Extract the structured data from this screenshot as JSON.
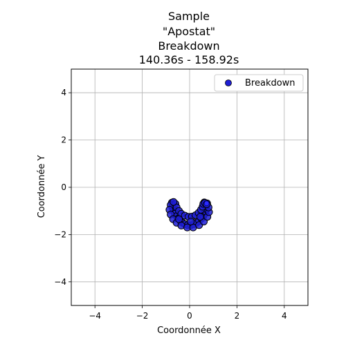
{
  "chart_data": {
    "type": "scatter",
    "title_lines": [
      "Sample",
      "\"Apostat\"",
      "Breakdown",
      "140.36s - 158.92s"
    ],
    "xlabel": "Coordonnée X",
    "ylabel": "Coordonnée Y",
    "xlim": [
      -5,
      5
    ],
    "ylim": [
      -5,
      5
    ],
    "xticks": [
      -4,
      -2,
      0,
      2,
      4
    ],
    "yticks": [
      -4,
      -2,
      0,
      2,
      4
    ],
    "x_tick_labels": [
      "−4",
      "−2",
      "0",
      "2",
      "4"
    ],
    "y_tick_labels": [
      "−4",
      "−2",
      "0",
      "2",
      "4"
    ],
    "grid": true,
    "legend_position": "top-right",
    "series": [
      {
        "name": "Breakdown",
        "color": "#1f1fd6",
        "edge_color": "#000000",
        "points": [
          [
            -0.75,
            -0.65
          ],
          [
            -0.72,
            -0.78
          ],
          [
            -0.7,
            -0.9
          ],
          [
            -0.66,
            -1.02
          ],
          [
            -0.62,
            -1.12
          ],
          [
            -0.55,
            -1.22
          ],
          [
            -0.48,
            -1.32
          ],
          [
            -0.4,
            -1.42
          ],
          [
            -0.3,
            -1.5
          ],
          [
            -0.2,
            -1.56
          ],
          [
            -0.08,
            -1.6
          ],
          [
            0.05,
            -1.6
          ],
          [
            0.18,
            -1.56
          ],
          [
            0.3,
            -1.5
          ],
          [
            0.4,
            -1.42
          ],
          [
            0.5,
            -1.32
          ],
          [
            0.58,
            -1.22
          ],
          [
            0.64,
            -1.12
          ],
          [
            0.68,
            -1.02
          ],
          [
            0.7,
            -0.92
          ],
          [
            0.7,
            -0.8
          ],
          [
            0.68,
            -0.7
          ],
          [
            0.62,
            -0.64
          ],
          [
            -0.8,
            -0.75
          ],
          [
            -0.85,
            -0.95
          ],
          [
            -0.8,
            -1.15
          ],
          [
            -0.7,
            -1.35
          ],
          [
            -0.55,
            -1.5
          ],
          [
            -0.35,
            -1.62
          ],
          [
            -0.1,
            -1.7
          ],
          [
            0.15,
            -1.7
          ],
          [
            0.4,
            -1.6
          ],
          [
            0.6,
            -1.45
          ],
          [
            0.75,
            -1.25
          ],
          [
            0.82,
            -1.05
          ],
          [
            0.8,
            -0.85
          ],
          [
            0.74,
            -0.68
          ],
          [
            -0.6,
            -0.7
          ],
          [
            -0.55,
            -0.85
          ],
          [
            -0.45,
            -1.0
          ],
          [
            -0.35,
            -1.12
          ],
          [
            -0.2,
            -1.2
          ],
          [
            -0.05,
            -1.25
          ],
          [
            0.1,
            -1.24
          ],
          [
            0.25,
            -1.18
          ],
          [
            0.38,
            -1.08
          ],
          [
            0.48,
            -0.95
          ],
          [
            0.55,
            -0.82
          ],
          [
            0.58,
            -0.7
          ],
          [
            -0.68,
            -0.62
          ],
          [
            -0.45,
            -1.35
          ],
          [
            0.05,
            -1.45
          ],
          [
            0.45,
            -1.25
          ],
          [
            0.65,
            -0.66
          ],
          [
            0.72,
            -0.72
          ]
        ],
        "highlight_point": [
          0.72,
          -0.68
        ]
      }
    ]
  }
}
